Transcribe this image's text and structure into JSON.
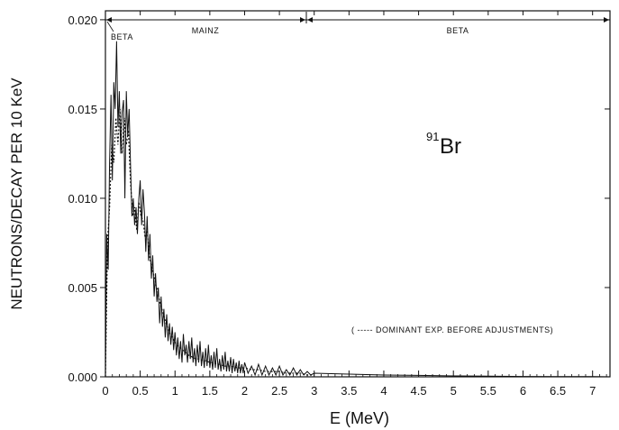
{
  "chart_data": {
    "type": "line",
    "xlabel": "E  (MeV)",
    "ylabel": "NEUTRONS/DECAY PER 10 KeV",
    "xlim": [
      0,
      7.25
    ],
    "ylim": [
      0,
      0.0205
    ],
    "x_ticks": [
      "0",
      "0.5",
      "1",
      "1.5",
      "2",
      "2.5",
      "3",
      "3.5",
      "4",
      "4.5",
      "5",
      "5.5",
      "6",
      "6.5",
      "7"
    ],
    "y_ticks": [
      "0.000",
      "0.005",
      "0.010",
      "0.015",
      "0.020"
    ],
    "nuclide": {
      "mass_number": "91",
      "symbol": "Br"
    },
    "annotation": "( ----- DOMINANT EXP. BEFORE ADJUSTMENTS)",
    "regions": [
      {
        "label": "BETA",
        "x_start": 0.0,
        "x_end": 0.03
      },
      {
        "label": "MAINZ",
        "x_start": 0.0,
        "x_end": 2.95
      },
      {
        "label": "BETA",
        "x_start": 2.95,
        "x_end": 7.25
      }
    ],
    "series": [
      {
        "style": "solid",
        "x": [
          0.0,
          0.02,
          0.04,
          0.06,
          0.08,
          0.1,
          0.12,
          0.14,
          0.16,
          0.18,
          0.2,
          0.22,
          0.24,
          0.26,
          0.28,
          0.3,
          0.32,
          0.34,
          0.36,
          0.38,
          0.4,
          0.42,
          0.44,
          0.46,
          0.48,
          0.5,
          0.52,
          0.54,
          0.56,
          0.58,
          0.6,
          0.62,
          0.64,
          0.66,
          0.68,
          0.7,
          0.72,
          0.74,
          0.76,
          0.78,
          0.8,
          0.82,
          0.84,
          0.86,
          0.88,
          0.9,
          0.92,
          0.94,
          0.96,
          0.98,
          1.0,
          1.02,
          1.04,
          1.06,
          1.08,
          1.1,
          1.12,
          1.14,
          1.16,
          1.18,
          1.2,
          1.22,
          1.24,
          1.26,
          1.28,
          1.3,
          1.32,
          1.34,
          1.36,
          1.38,
          1.4,
          1.42,
          1.44,
          1.46,
          1.48,
          1.5,
          1.52,
          1.54,
          1.56,
          1.58,
          1.6,
          1.62,
          1.64,
          1.66,
          1.68,
          1.7,
          1.72,
          1.74,
          1.76,
          1.78,
          1.8,
          1.82,
          1.84,
          1.86,
          1.88,
          1.9,
          1.92,
          1.94,
          1.96,
          1.98,
          2.0,
          2.05,
          2.1,
          2.15,
          2.2,
          2.25,
          2.3,
          2.35,
          2.4,
          2.45,
          2.5,
          2.55,
          2.6,
          2.65,
          2.7,
          2.75,
          2.8,
          2.85,
          2.9,
          2.95,
          3.0,
          3.5,
          4.0,
          4.5,
          5.0,
          5.5,
          6.0,
          6.5,
          7.0,
          7.25
        ],
        "y": [
          0.0,
          0.008,
          0.006,
          0.012,
          0.0158,
          0.011,
          0.0165,
          0.015,
          0.0188,
          0.014,
          0.016,
          0.0125,
          0.0148,
          0.0155,
          0.01,
          0.016,
          0.0135,
          0.015,
          0.012,
          0.009,
          0.01,
          0.0085,
          0.0095,
          0.008,
          0.01,
          0.011,
          0.0085,
          0.0105,
          0.0092,
          0.007,
          0.009,
          0.0065,
          0.008,
          0.0055,
          0.0068,
          0.0045,
          0.0058,
          0.0042,
          0.005,
          0.003,
          0.0045,
          0.0028,
          0.0038,
          0.0022,
          0.0035,
          0.002,
          0.003,
          0.0018,
          0.0028,
          0.0015,
          0.0025,
          0.0012,
          0.0022,
          0.001,
          0.002,
          0.0008,
          0.0024,
          0.0012,
          0.0018,
          0.0008,
          0.002,
          0.001,
          0.0022,
          0.0008,
          0.0016,
          0.0006,
          0.0018,
          0.0008,
          0.002,
          0.0006,
          0.0014,
          0.0005,
          0.0016,
          0.0006,
          0.0018,
          0.0005,
          0.0012,
          0.0004,
          0.0014,
          0.0005,
          0.0016,
          0.0004,
          0.001,
          0.0003,
          0.0012,
          0.0004,
          0.0014,
          0.0003,
          0.0009,
          0.0003,
          0.0011,
          0.0002,
          0.001,
          0.0003,
          0.0008,
          0.0002,
          0.0009,
          0.0002,
          0.0007,
          0.0002,
          0.0008,
          0.0002,
          0.0006,
          0.0001,
          0.0007,
          0.0001,
          0.0006,
          0.0001,
          0.0005,
          0.0001,
          0.0006,
          0.0001,
          0.0004,
          0.0001,
          0.0005,
          0.0001,
          0.0004,
          0.0001,
          0.0003,
          0.0001,
          0.0002,
          0.00015,
          0.0001,
          8e-05,
          5e-05,
          4e-05,
          2e-05,
          1e-05,
          1e-05,
          0.0
        ]
      },
      {
        "style": "dotted",
        "x": [
          0.0,
          0.03,
          0.06,
          0.09,
          0.12,
          0.15,
          0.18,
          0.21,
          0.24,
          0.27,
          0.3,
          0.33,
          0.36,
          0.39,
          0.42,
          0.45,
          0.48,
          0.51,
          0.54,
          0.57,
          0.6,
          0.63,
          0.66,
          0.69,
          0.72,
          0.75,
          0.78,
          0.81,
          0.84,
          0.87,
          0.9,
          0.93,
          0.96,
          0.99,
          1.02,
          1.05,
          1.08,
          1.11,
          1.14,
          1.17,
          1.2,
          1.25,
          1.3,
          1.35,
          1.4,
          1.45,
          1.5,
          1.55,
          1.6,
          1.65,
          1.7,
          1.8,
          1.9,
          2.0,
          2.1,
          2.2,
          2.3,
          2.4,
          2.5,
          2.6,
          2.7,
          2.8,
          2.9,
          3.0
        ],
        "y": [
          0.0,
          0.0075,
          0.0095,
          0.013,
          0.012,
          0.0145,
          0.013,
          0.015,
          0.0125,
          0.0145,
          0.013,
          0.0138,
          0.011,
          0.009,
          0.0095,
          0.0082,
          0.0098,
          0.009,
          0.0088,
          0.0078,
          0.0082,
          0.0068,
          0.0062,
          0.0058,
          0.0052,
          0.0048,
          0.0042,
          0.0038,
          0.0034,
          0.003,
          0.0027,
          0.0024,
          0.0022,
          0.002,
          0.0018,
          0.0017,
          0.0016,
          0.0015,
          0.0014,
          0.0013,
          0.0012,
          0.0011,
          0.001,
          0.001,
          0.0009,
          0.0009,
          0.0008,
          0.0008,
          0.0007,
          0.0007,
          0.0006,
          0.0006,
          0.0005,
          0.0005,
          0.0004,
          0.0004,
          0.0003,
          0.0003,
          0.0003,
          0.0002,
          0.0002,
          0.0002,
          0.0001,
          0.0001
        ]
      }
    ]
  }
}
